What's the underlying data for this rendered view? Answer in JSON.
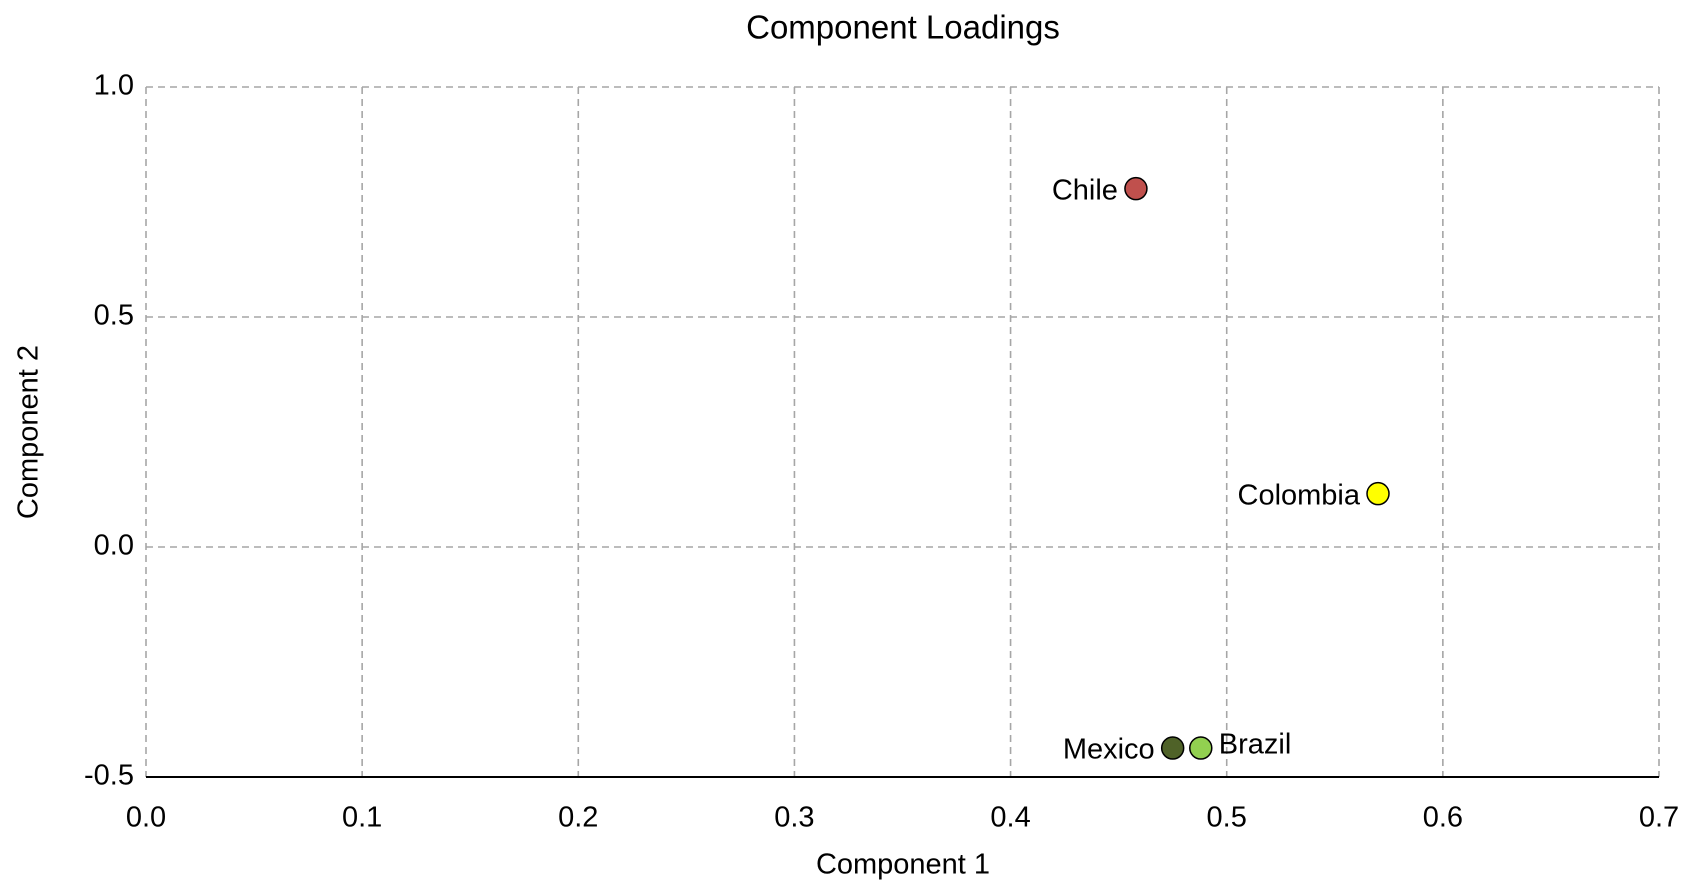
{
  "chart_data": {
    "type": "scatter",
    "title": "Component Loadings",
    "x_label": "Component 1",
    "y_label": "Component 2",
    "xlim": [
      0,
      0.7
    ],
    "ylim": [
      -0.5,
      1
    ],
    "xticks": [
      {
        "value": 0,
        "label": "0.0"
      },
      0.1,
      0.2,
      0.3,
      0.4,
      0.5,
      0.6,
      0.7
    ],
    "yticks": [
      -0.5,
      {
        "value": 0,
        "label": "0.0"
      },
      0.5,
      {
        "value": 1,
        "label": "1.0"
      }
    ],
    "grid": true,
    "series": [
      {
        "name": "Chile",
        "color": "#c0504d",
        "x": [
          0.458
        ],
        "y": [
          0.779
        ],
        "label_position": "left"
      },
      {
        "name": "Colombia",
        "color": "#ffff00",
        "x": [
          0.57
        ],
        "y": [
          0.116
        ],
        "label_position": "left"
      },
      {
        "name": "Mexico",
        "color": "#4f6228",
        "x": [
          0.475
        ],
        "y": [
          -0.437
        ],
        "label_position": "left"
      },
      {
        "name": "Brazil",
        "color": "#92d050",
        "x": [
          0.488
        ],
        "y": [
          -0.437
        ],
        "label_position": "right"
      }
    ]
  }
}
